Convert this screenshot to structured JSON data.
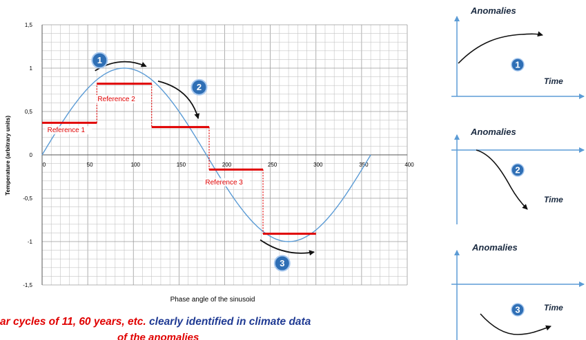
{
  "chart_data": {
    "type": "line",
    "xlabel": "Phase angle of the sinusoid",
    "ylabel": "Temperature (arbitrary units)",
    "xlim": [
      0,
      400
    ],
    "ylim": [
      -1.5,
      1.5
    ],
    "x_ticks": [
      "0",
      "50",
      "100",
      "150",
      "200",
      "250",
      "300",
      "350",
      "400"
    ],
    "y_ticks": [
      "1,5",
      "1",
      "0,5",
      "0",
      "-0,5",
      "-1",
      "-1,5"
    ],
    "grid": true,
    "series": [
      {
        "type": "line",
        "color": "#5b9bd5",
        "function": "sin(x degrees)",
        "x_range": [
          0,
          360
        ]
      },
      {
        "type": "step",
        "color": "#e00000",
        "segments": [
          {
            "x": [
              0,
              60
            ],
            "y": 0.37
          },
          {
            "x": [
              60,
              120
            ],
            "y": 0.82
          },
          {
            "x": [
              120,
              183
            ],
            "y": 0.32
          },
          {
            "x": [
              183,
              242
            ],
            "y": -0.17
          },
          {
            "x": [
              242,
              300
            ],
            "y": -0.91
          }
        ]
      }
    ],
    "annotations": [
      {
        "text": "Reference 1",
        "at": [
          5,
          0.26
        ]
      },
      {
        "text": "Reference 2",
        "at": [
          60,
          0.62
        ]
      },
      {
        "text": "Reference 3",
        "at": [
          178,
          -0.34
        ]
      }
    ],
    "badges": [
      {
        "num": "1",
        "at": [
          63,
          1.09
        ]
      },
      {
        "num": "2",
        "at": [
          172,
          0.78
        ]
      },
      {
        "num": "3",
        "at": [
          263,
          -1.25
        ]
      }
    ],
    "arrows": [
      {
        "from": [
          58,
          0.97
        ],
        "ctrl": [
          86,
          1.15
        ],
        "to": [
          114,
          1.02
        ]
      },
      {
        "from": [
          127,
          0.85
        ],
        "ctrl": [
          162,
          0.76
        ],
        "to": [
          171,
          0.42
        ]
      },
      {
        "from": [
          239,
          -0.98
        ],
        "ctrl": [
          266,
          -1.18
        ],
        "to": [
          298,
          -1.12
        ]
      }
    ]
  },
  "side_panels": [
    {
      "title": "Anomalies",
      "time_label": "Time",
      "badge": "1",
      "trend": "rising"
    },
    {
      "title": "Anomalies",
      "time_label": "Time",
      "badge": "2",
      "trend": "falling"
    },
    {
      "title": "Anomalies",
      "time_label": "Time",
      "badge": "3",
      "trend": "trough"
    }
  ],
  "caption": {
    "part1": "ar cycles of 11, 60 years, etc.",
    "part2": "clearly identified in climate data",
    "line2": "of the anomalies"
  },
  "colors": {
    "sine": "#5b9bd5",
    "reference": "#e00000",
    "badge": "#2f6fb5",
    "navy": "#1f3a93",
    "panel_axis": "#5b9bd5"
  }
}
